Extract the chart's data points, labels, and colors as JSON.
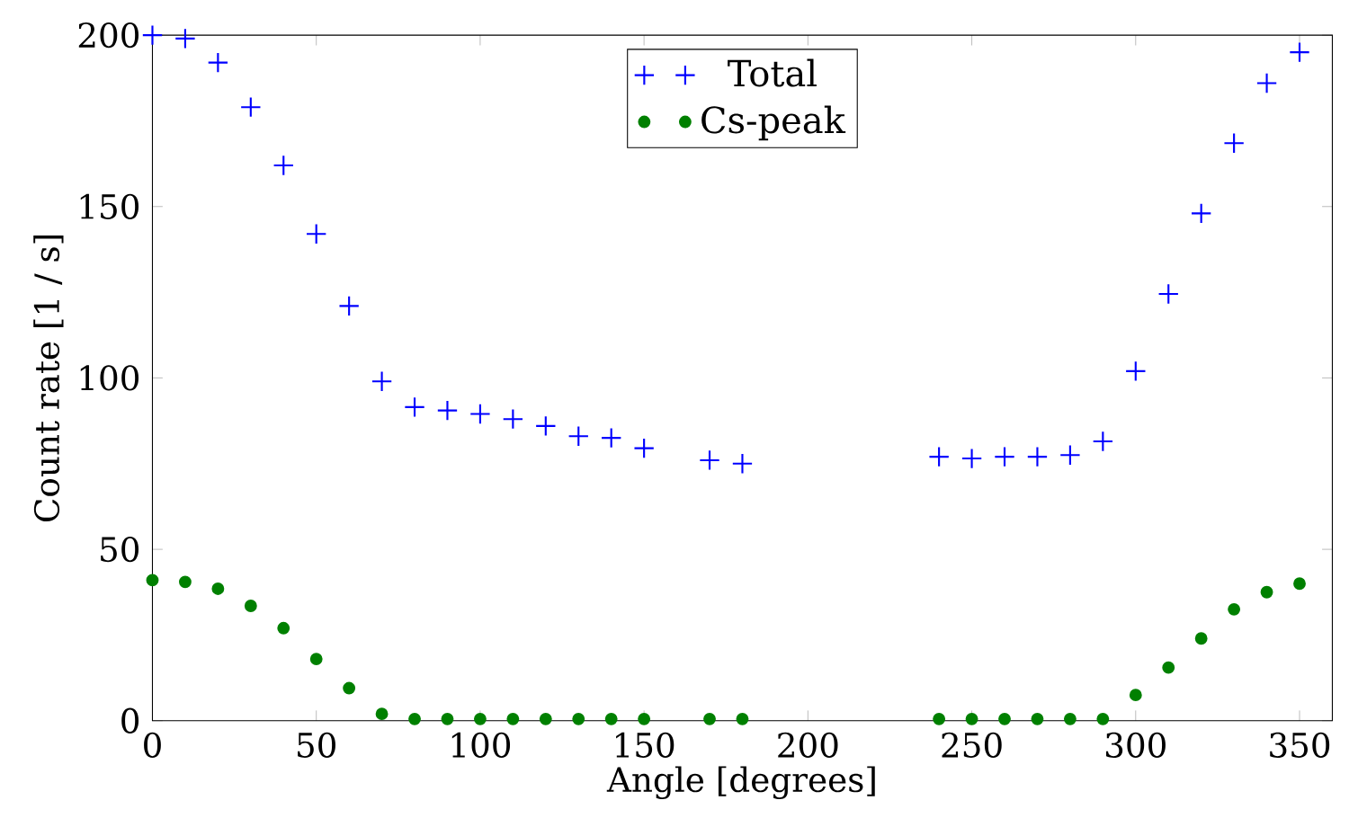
{
  "chart_data": {
    "type": "scatter",
    "xlabel": "Angle [degrees]",
    "ylabel": "Count rate [1 / s]",
    "x": [
      0,
      10,
      20,
      30,
      40,
      50,
      60,
      70,
      80,
      90,
      100,
      110,
      120,
      130,
      140,
      150,
      170,
      180,
      240,
      250,
      260,
      270,
      280,
      290,
      300,
      310,
      320,
      330,
      340,
      350
    ],
    "series": [
      {
        "name": "Total",
        "color": "#0000ff",
        "marker": "cross",
        "values": [
          200,
          199,
          192,
          179,
          162,
          142,
          121,
          99,
          91.5,
          90.5,
          89.5,
          88,
          86,
          83,
          82.5,
          79.5,
          76,
          75,
          77,
          76.5,
          77,
          77,
          77.5,
          81.5,
          102,
          124.5,
          148,
          168.5,
          186,
          195
        ]
      },
      {
        "name": "Cs-peak",
        "color": "#008000",
        "marker": "circle",
        "values": [
          41,
          40.5,
          38.5,
          33.5,
          27,
          18,
          9.5,
          2,
          0.5,
          0.5,
          0.5,
          0.5,
          0.5,
          0.5,
          0.5,
          0.5,
          0.5,
          0.5,
          0.5,
          0.5,
          0.5,
          0.5,
          0.5,
          0.5,
          7.5,
          15.5,
          24,
          32.5,
          37.5,
          40
        ]
      }
    ],
    "xlim": [
      0,
      360
    ],
    "ylim": [
      0,
      200
    ],
    "xticks": [
      0,
      50,
      100,
      150,
      200,
      250,
      300,
      350
    ],
    "yticks": [
      0,
      50,
      100,
      150,
      200
    ],
    "legend": "top",
    "grid": false
  }
}
